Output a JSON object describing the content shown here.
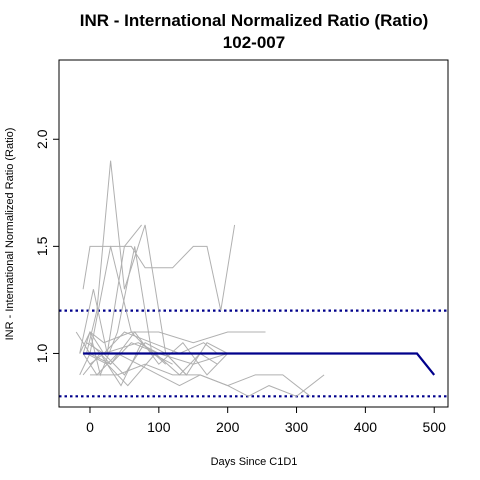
{
  "chart_data": {
    "type": "line",
    "title": "INR - International Normalized Ratio (Ratio)",
    "subtitle": "102-007",
    "xlabel": "Days Since C1D1",
    "ylabel": "INR - International Normalized Ratio (Ratio)",
    "xlim": [
      -45,
      520
    ],
    "ylim": [
      0.75,
      2.37
    ],
    "xticks": [
      0,
      100,
      200,
      300,
      400,
      500
    ],
    "yticks": [
      1.0,
      1.5,
      2.0
    ],
    "ytick_labels": [
      "1.0",
      "1.5",
      "2.0"
    ],
    "reference_lines": [
      {
        "y": 1.2,
        "style": "dotted",
        "color": "#00008b"
      },
      {
        "y": 0.8,
        "style": "dotted",
        "color": "#00008b"
      }
    ],
    "highlight_series": {
      "color": "#00008b",
      "x": [
        -10,
        475,
        500
      ],
      "y": [
        1.0,
        1.0,
        0.9
      ]
    },
    "background_series_color": "#b0b0b0",
    "background_series": [
      {
        "x": [
          -15,
          0,
          20,
          70,
          100
        ],
        "y": [
          1.0,
          1.1,
          1.0,
          1.05,
          1.0
        ]
      },
      {
        "x": [
          -10,
          0,
          30,
          60,
          90,
          120
        ],
        "y": [
          1.3,
          1.5,
          1.5,
          1.1,
          1.0,
          0.95
        ]
      },
      {
        "x": [
          -5,
          10,
          30,
          50,
          80,
          110,
          140
        ],
        "y": [
          1.0,
          1.2,
          1.9,
          1.3,
          1.6,
          1.0,
          0.9
        ]
      },
      {
        "x": [
          0,
          15,
          40,
          65,
          90
        ],
        "y": [
          1.1,
          0.9,
          1.1,
          1.5,
          1.0
        ]
      },
      {
        "x": [
          -15,
          5,
          25,
          50,
          75
        ],
        "y": [
          1.0,
          1.3,
          1.0,
          1.5,
          1.6
        ]
      },
      {
        "x": [
          -20,
          0,
          30,
          60,
          80,
          120,
          150,
          170,
          190,
          210
        ],
        "y": [
          1.1,
          1.0,
          1.5,
          1.5,
          1.4,
          1.4,
          1.5,
          1.5,
          1.2,
          1.6
        ]
      },
      {
        "x": [
          -10,
          0,
          20,
          60,
          100,
          150,
          200,
          255
        ],
        "y": [
          1.0,
          1.1,
          1.05,
          1.1,
          1.1,
          1.05,
          1.1,
          1.1
        ]
      },
      {
        "x": [
          -15,
          0,
          30,
          60,
          100,
          150,
          200
        ],
        "y": [
          0.9,
          1.0,
          0.95,
          1.05,
          1.0,
          0.95,
          1.0
        ]
      },
      {
        "x": [
          0,
          20,
          50,
          80,
          110,
          140,
          170,
          200
        ],
        "y": [
          0.95,
          1.0,
          0.9,
          1.05,
          1.0,
          0.9,
          1.05,
          1.0
        ]
      },
      {
        "x": [
          -5,
          20,
          50,
          90,
          130,
          165,
          185
        ],
        "y": [
          1.05,
          1.0,
          1.1,
          1.05,
          1.0,
          1.05,
          1.0
        ]
      },
      {
        "x": [
          -10,
          10,
          40,
          70,
          100,
          130,
          160,
          200,
          230,
          260,
          300,
          340
        ],
        "y": [
          1.0,
          0.9,
          1.0,
          0.95,
          0.9,
          0.85,
          0.9,
          0.85,
          0.8,
          0.85,
          0.8,
          0.9
        ]
      },
      {
        "x": [
          0,
          40,
          80,
          120,
          160,
          200,
          240,
          280,
          320
        ],
        "y": [
          0.9,
          0.9,
          0.95,
          0.9,
          0.9,
          0.85,
          0.9,
          0.9,
          0.8
        ]
      },
      {
        "x": [
          -5,
          25,
          55,
          95,
          130,
          160,
          185
        ],
        "y": [
          1.0,
          0.95,
          0.85,
          1.0,
          0.9,
          1.0,
          0.95
        ]
      },
      {
        "x": [
          0,
          30,
          65,
          100,
          135,
          170,
          200
        ],
        "y": [
          1.05,
          0.95,
          1.1,
          0.95,
          1.05,
          0.9,
          1.0
        ]
      },
      {
        "x": [
          -10,
          15,
          45,
          75,
          110
        ],
        "y": [
          0.9,
          1.0,
          0.85,
          1.05,
          0.95
        ]
      }
    ]
  }
}
